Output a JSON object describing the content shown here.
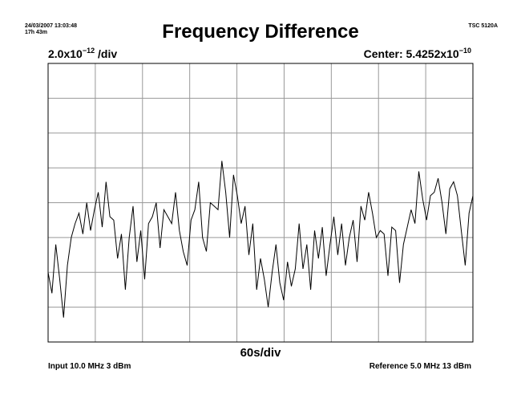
{
  "header": {
    "timestamp": "24/03/2007 13:03:48",
    "duration": "17h 43m",
    "model": "TSC 5120A",
    "title": "Frequency Difference",
    "scale_base": "2.0x10",
    "scale_exp": "−12",
    "scale_unit": " /div",
    "center_base": "Center: 5.4252x10",
    "center_exp": "−10"
  },
  "footer": {
    "x_per_div": "60s/div",
    "input": "Input 10.0 MHz 3 dBm",
    "reference": "Reference 5.0 MHz 13 dBm"
  },
  "chart_data": {
    "type": "line",
    "title": "Frequency Difference",
    "x_unit": "s",
    "y_unit": "divisions from center (1 div = 2.0x10^-12)",
    "xlim": [
      0,
      550
    ],
    "ylim": [
      -4,
      4
    ],
    "x_divisions": 9,
    "y_divisions": 8,
    "grid": true,
    "series": [
      {
        "x": [
          0,
          5,
          10,
          15,
          20,
          25,
          30,
          35,
          40,
          45,
          50,
          55,
          60,
          65,
          70,
          75,
          80,
          85,
          90,
          95,
          100,
          105,
          110,
          115,
          120,
          125,
          130,
          135,
          140,
          145,
          150,
          155,
          160,
          165,
          170,
          175,
          180,
          185,
          190,
          195,
          200,
          205,
          210,
          215,
          220,
          225,
          230,
          235,
          240,
          245,
          250,
          255,
          260,
          265,
          270,
          275,
          280,
          285,
          290,
          295,
          300,
          305,
          310,
          315,
          320,
          325,
          330,
          335,
          340,
          345,
          350,
          355,
          360,
          365,
          370,
          375,
          380,
          385,
          390,
          395,
          400,
          405,
          410,
          415,
          420,
          425,
          430,
          435,
          440,
          445,
          450,
          455,
          460,
          465,
          470,
          475,
          480,
          485,
          490,
          495,
          500,
          505,
          510,
          515,
          520,
          525,
          530,
          535,
          540,
          545,
          550
        ],
        "y": [
          -2.0,
          -2.6,
          -1.2,
          -2.2,
          -3.3,
          -1.8,
          -1.0,
          -0.6,
          -0.3,
          -0.9,
          0.0,
          -0.8,
          -0.2,
          0.3,
          -0.7,
          0.6,
          -0.4,
          -0.5,
          -1.6,
          -0.9,
          -2.5,
          -1.0,
          -0.1,
          -1.7,
          -0.8,
          -2.2,
          -0.6,
          -0.4,
          0.0,
          -1.3,
          -0.2,
          -0.4,
          -0.6,
          0.3,
          -0.8,
          -1.4,
          -1.8,
          -0.5,
          -0.2,
          0.6,
          -1.0,
          -1.4,
          0.0,
          -0.1,
          -0.2,
          1.2,
          0.3,
          -1.0,
          0.8,
          0.2,
          -0.6,
          -0.1,
          -1.5,
          -0.6,
          -2.5,
          -1.6,
          -2.2,
          -3.0,
          -2.0,
          -1.2,
          -2.3,
          -2.8,
          -1.7,
          -2.4,
          -1.9,
          -0.6,
          -1.9,
          -1.2,
          -2.5,
          -0.8,
          -1.6,
          -0.7,
          -2.1,
          -1.2,
          -0.4,
          -1.5,
          -0.6,
          -1.8,
          -1.0,
          -0.5,
          -1.7,
          -0.1,
          -0.5,
          0.3,
          -0.3,
          -1.0,
          -0.8,
          -0.9,
          -2.1,
          -0.7,
          -0.8,
          -2.3,
          -1.2,
          -0.7,
          -0.2,
          -0.6,
          0.9,
          0.1,
          -0.5,
          0.2,
          0.3,
          0.7,
          0.0,
          -0.9,
          0.4,
          0.6,
          0.2,
          -0.8,
          -1.8,
          -0.3,
          0.2
        ]
      }
    ]
  }
}
